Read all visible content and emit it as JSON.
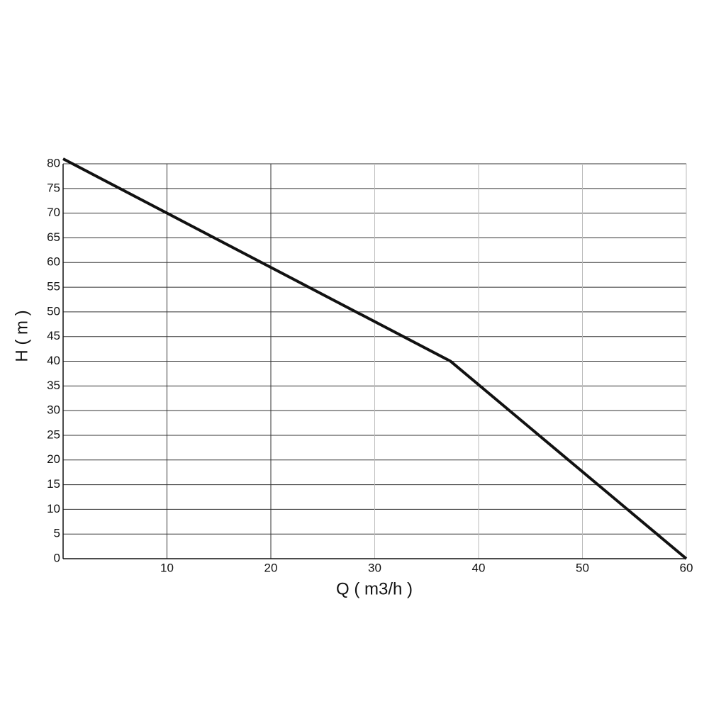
{
  "chart_data": {
    "type": "line",
    "x_label": "Q ( m3/h )",
    "y_label": "H ( m )",
    "x": [
      0,
      37.3,
      60
    ],
    "series": [
      {
        "name": "H",
        "color": "#111111",
        "values": [
          81,
          40,
          0
        ]
      }
    ],
    "xlim": [
      0,
      60
    ],
    "xticks": [
      10,
      20,
      30,
      40,
      50,
      60
    ],
    "ylim": [
      0,
      80
    ],
    "yticks": [
      0,
      5,
      10,
      15,
      20,
      25,
      30,
      35,
      40,
      45,
      50,
      55,
      60,
      65,
      70,
      75,
      80
    ],
    "grid": true
  }
}
